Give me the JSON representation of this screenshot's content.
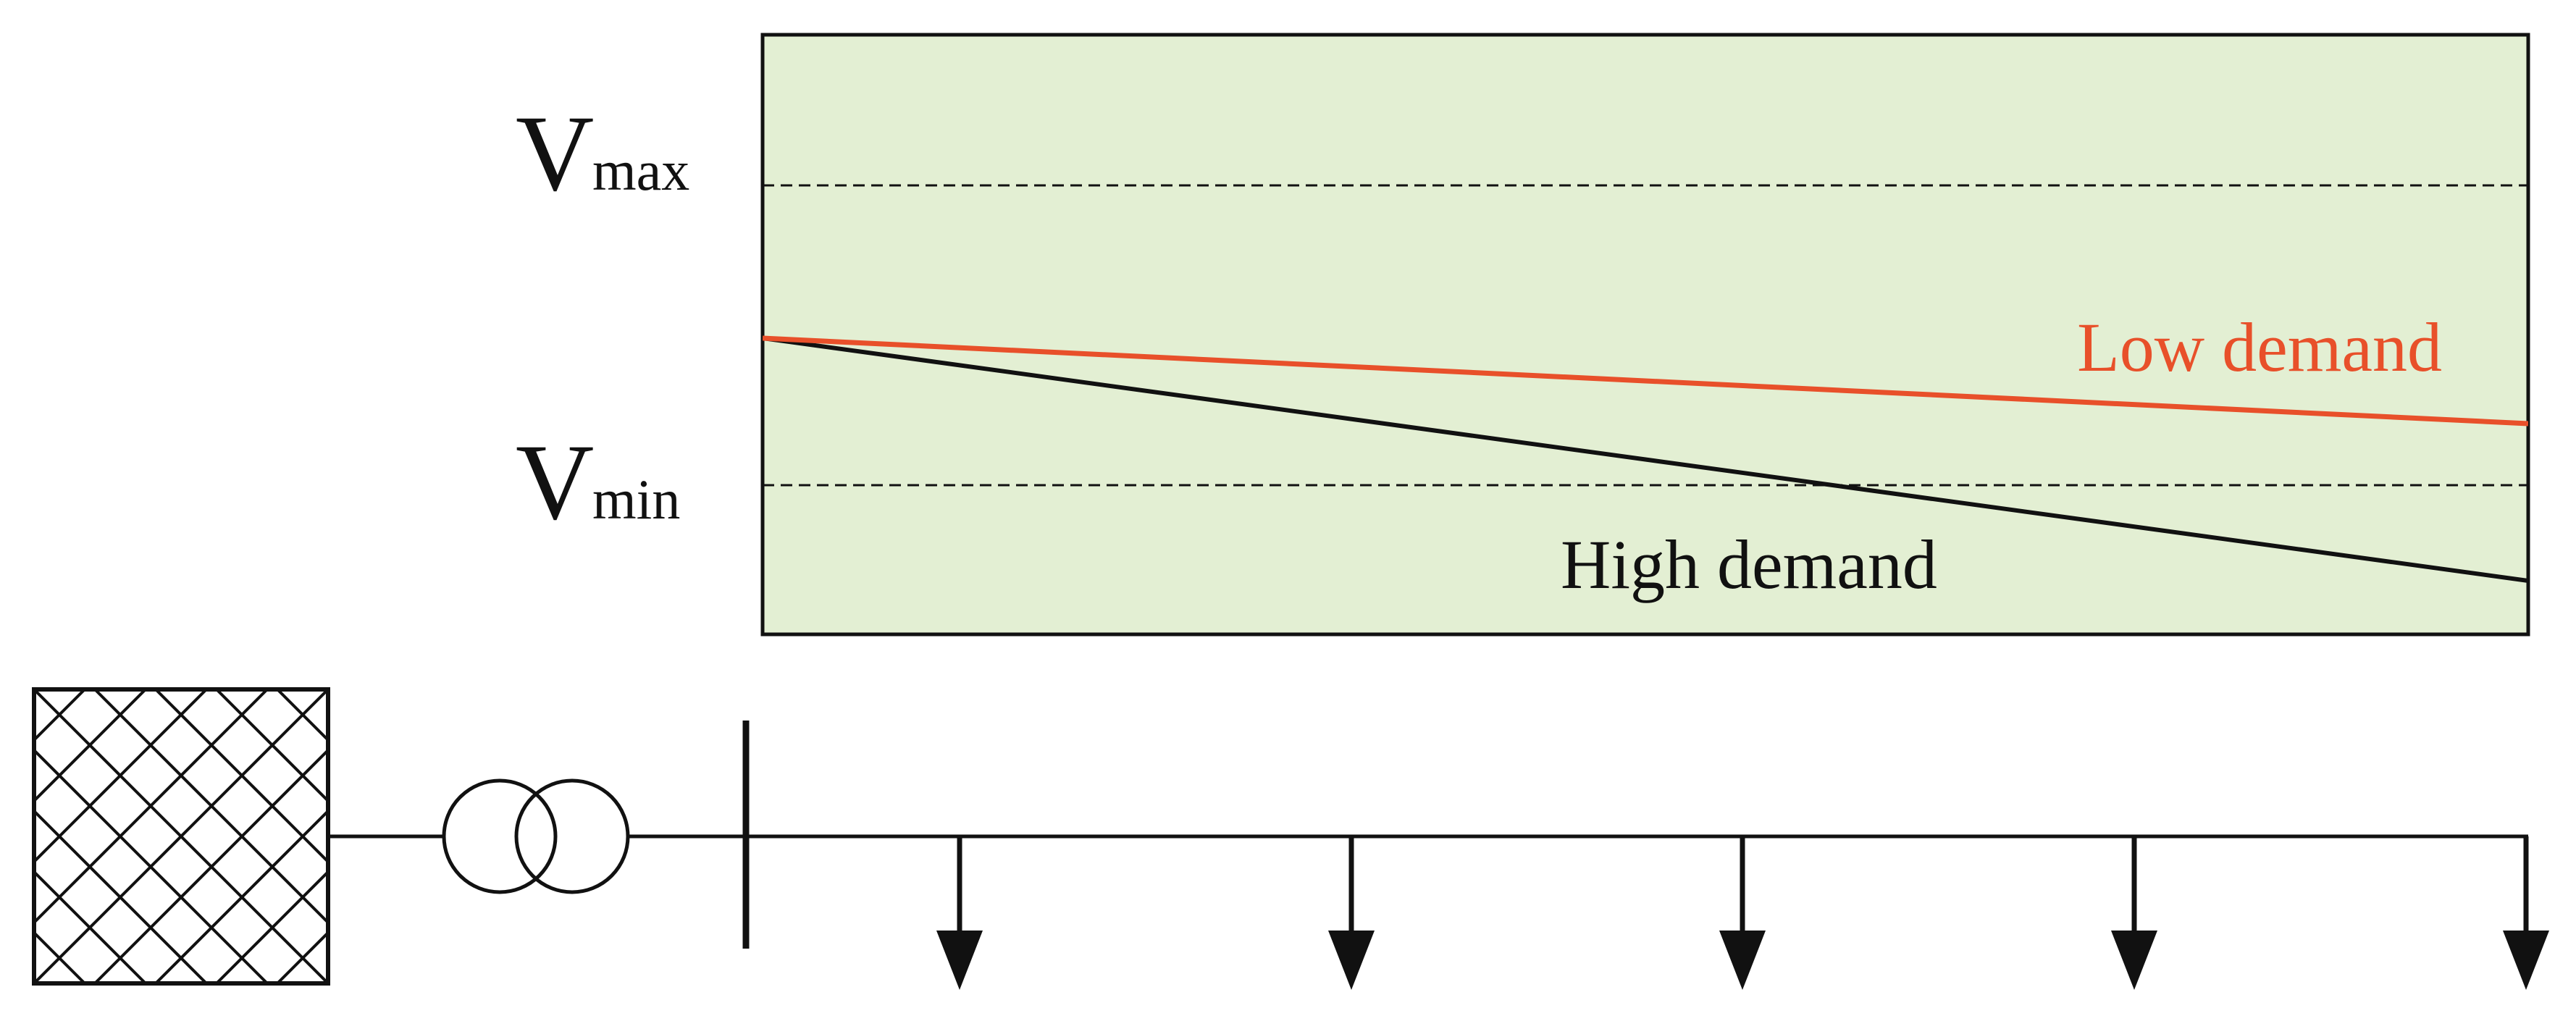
{
  "labels": {
    "vmax_main": "V",
    "vmax_sub": "max",
    "vmin_main": "V",
    "vmin_sub": "min",
    "low_demand": "Low demand",
    "high_demand": "High demand"
  },
  "colors": {
    "plot_background": "#e3efd3",
    "low_demand": "#e8502a",
    "high_demand": "#111111",
    "line": "#111111"
  },
  "icons": {
    "grid_source": "hatched-grid-source-icon",
    "transformer": "transformer-icon",
    "busbar": "busbar-icon",
    "load": "load-arrow-icon"
  },
  "loads": {
    "count": 5
  }
}
